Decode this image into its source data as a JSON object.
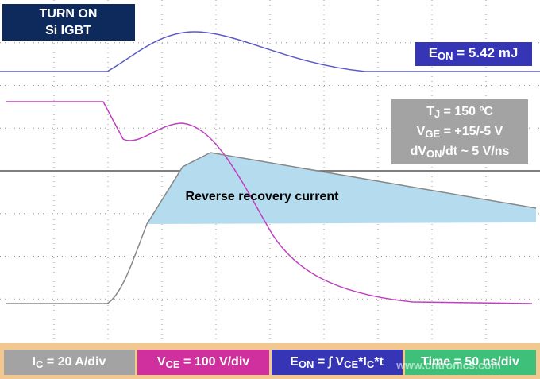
{
  "title": {
    "line1": "TURN ON",
    "line2": "Si IGBT"
  },
  "energy": {
    "main": "E",
    "sub": "ON",
    "rest": " = 5.42 mJ"
  },
  "conditions": [
    {
      "main": "T",
      "sub": "J",
      "rest": " = 150 ºC"
    },
    {
      "main": "V",
      "sub": "GE",
      "rest": " = +15/-5 V"
    },
    {
      "main": "dV",
      "sub": "ON",
      "rest": "/dt ~ 5 V/ns"
    }
  ],
  "annotation": "Reverse recovery current",
  "footer": {
    "current": {
      "main": "I",
      "sub": "C",
      "rest": " = 20 A/div"
    },
    "voltage": {
      "main": "V",
      "sub": "CE",
      "rest": " = 100 V/div"
    },
    "formula": {
      "main": "E",
      "sub": "ON",
      "mid": " = ∫ V",
      "sub2": "CE",
      "mid2": "*I",
      "sub3": "C",
      "rest": "*t"
    },
    "time": "Time = 50 ns/div"
  },
  "watermark": "www.cntronics.com"
}
